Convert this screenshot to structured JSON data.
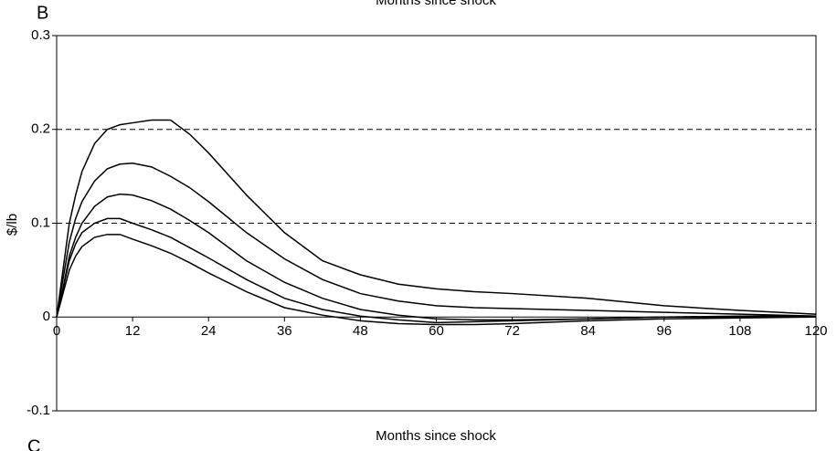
{
  "chart_data": {
    "type": "line",
    "panel_label": "B",
    "next_panel_label": "C",
    "previous_axis_label": "Months since shock",
    "xlabel": "Months since shock",
    "ylabel": "$/lb",
    "x": [
      0,
      1,
      2,
      3,
      4,
      6,
      8,
      10,
      12,
      15,
      18,
      21,
      24,
      30,
      36,
      42,
      48,
      54,
      60,
      66,
      72,
      84,
      96,
      108,
      120
    ],
    "series": [
      {
        "color": "#000000",
        "values": [
          0,
          0.05,
          0.1,
          0.13,
          0.155,
          0.185,
          0.2,
          0.205,
          0.207,
          0.21,
          0.21,
          0.195,
          0.175,
          0.13,
          0.09,
          0.06,
          0.045,
          0.035,
          0.03,
          0.027,
          0.025,
          0.02,
          0.012,
          0.007,
          0.003
        ]
      },
      {
        "color": "#000000",
        "values": [
          0,
          0.04,
          0.08,
          0.105,
          0.123,
          0.145,
          0.158,
          0.163,
          0.164,
          0.16,
          0.15,
          0.138,
          0.123,
          0.09,
          0.062,
          0.04,
          0.025,
          0.017,
          0.012,
          0.01,
          0.009,
          0.007,
          0.005,
          0.003,
          0.001
        ]
      },
      {
        "color": "#000000",
        "values": [
          0,
          0.03,
          0.065,
          0.085,
          0.1,
          0.118,
          0.128,
          0.131,
          0.13,
          0.124,
          0.115,
          0.103,
          0.09,
          0.06,
          0.037,
          0.02,
          0.008,
          0.002,
          -0.002,
          -0.003,
          -0.003,
          -0.002,
          0,
          0.001,
          0.001
        ]
      },
      {
        "color": "#000000",
        "values": [
          0,
          0.03,
          0.06,
          0.078,
          0.09,
          0.1,
          0.105,
          0.105,
          0.1,
          0.093,
          0.085,
          0.074,
          0.063,
          0.04,
          0.02,
          0.008,
          0.001,
          -0.003,
          -0.006,
          -0.005,
          -0.004,
          -0.002,
          0,
          0,
          0
        ]
      },
      {
        "color": "#000000",
        "values": [
          0,
          0.025,
          0.05,
          0.065,
          0.075,
          0.085,
          0.088,
          0.088,
          0.083,
          0.076,
          0.068,
          0.058,
          0.047,
          0.027,
          0.01,
          0.002,
          -0.004,
          -0.007,
          -0.008,
          -0.008,
          -0.007,
          -0.004,
          -0.002,
          -0.001,
          0
        ]
      }
    ],
    "xlim": [
      0,
      120
    ],
    "xticks": [
      0,
      12,
      24,
      36,
      48,
      60,
      72,
      84,
      96,
      108,
      120
    ],
    "ylim": [
      -0.1,
      0.3
    ],
    "yticks": [
      -0.1,
      0,
      0.1,
      0.2,
      0.3
    ],
    "reference_lines": [
      0.1,
      0.2
    ]
  }
}
